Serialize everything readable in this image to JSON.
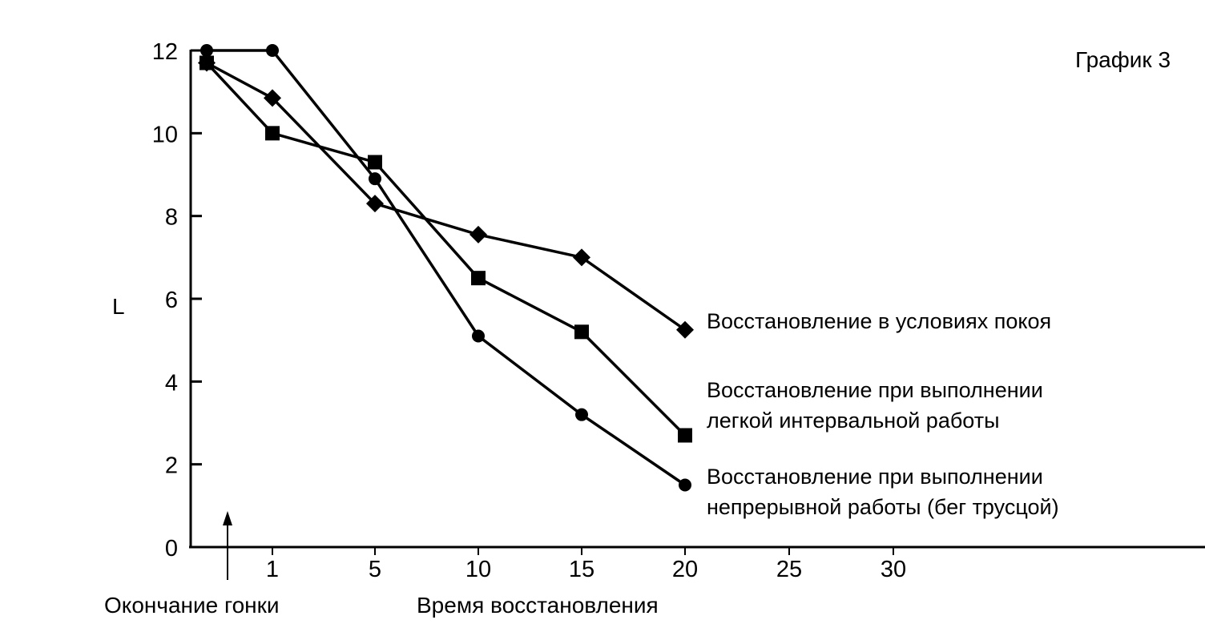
{
  "chart_data": {
    "type": "line",
    "title": "График 3",
    "ylabel": "L",
    "xlabel": "Время восстановления",
    "x_annotation": "Окончание гонки",
    "ylim": [
      0,
      12
    ],
    "yticks": [
      0,
      2,
      4,
      6,
      8,
      10,
      12
    ],
    "x": [
      "end",
      1,
      5,
      10,
      15,
      20
    ],
    "xticks": [
      "1",
      "5",
      "10",
      "15",
      "20",
      "25",
      "30"
    ],
    "grid": false,
    "series": [
      {
        "name": "Восстановление в условиях покоя",
        "label_lines": [
          "Восстановление в условиях покоя"
        ],
        "marker": "diamond",
        "values": [
          11.7,
          10.85,
          8.3,
          7.55,
          7.0,
          5.25
        ]
      },
      {
        "name": "Восстановление при выполнении легкой интервальной работы",
        "label_lines": [
          "Восстановление при выполнении",
          "легкой интервальной работы"
        ],
        "marker": "square",
        "values": [
          11.7,
          10.0,
          9.3,
          6.5,
          5.2,
          2.7
        ]
      },
      {
        "name": "Восстановление при выполнении непрерывной работы (бег трусцой)",
        "label_lines": [
          "Восстановление при выполнении",
          "непрерывной работы (бег трусцой)"
        ],
        "marker": "circle",
        "values": [
          12.0,
          12.0,
          8.9,
          5.1,
          3.2,
          1.5
        ]
      }
    ]
  }
}
